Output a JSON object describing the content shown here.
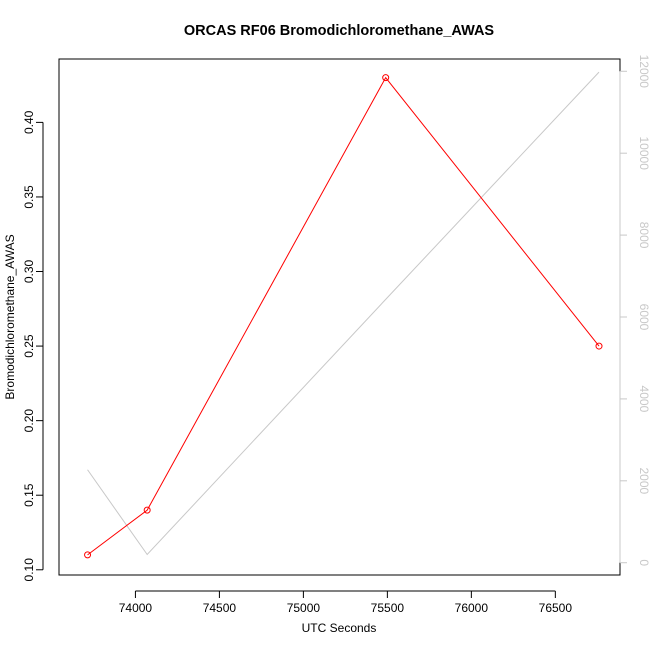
{
  "chart_data": {
    "type": "line",
    "title": "ORCAS RF06 Bromodichloromethane_AWAS",
    "xlabel": "UTC Seconds",
    "ylabel": "Bromodichloromethane_AWAS",
    "xlim": [
      73545,
      76885
    ],
    "ylim": [
      0.0965,
      0.4425
    ],
    "y2lim": [
      -300,
      12300
    ],
    "x_ticks": [
      74000,
      74500,
      75000,
      75500,
      76000,
      76500
    ],
    "y_ticks": [
      0.1,
      0.15,
      0.2,
      0.25,
      0.3,
      0.35,
      0.4
    ],
    "y_tick_labels": [
      "0.10",
      "0.15",
      "0.20",
      "0.25",
      "0.30",
      "0.35",
      "0.40"
    ],
    "y2_ticks": [
      0,
      2000,
      4000,
      6000,
      8000,
      10000,
      12000
    ],
    "grid": false,
    "legend": "none",
    "series": [
      {
        "axis": "left",
        "color": "#ff0000",
        "markers": "open-circle",
        "x": [
          73715,
          74070,
          75490,
          76760
        ],
        "y": [
          0.11,
          0.14,
          0.43,
          0.25
        ]
      },
      {
        "axis": "right",
        "color": "#c8c8c8",
        "markers": "none",
        "x": [
          73715,
          74070,
          75490,
          76760
        ],
        "y": [
          2270,
          200,
          6430,
          11980
        ]
      }
    ]
  }
}
